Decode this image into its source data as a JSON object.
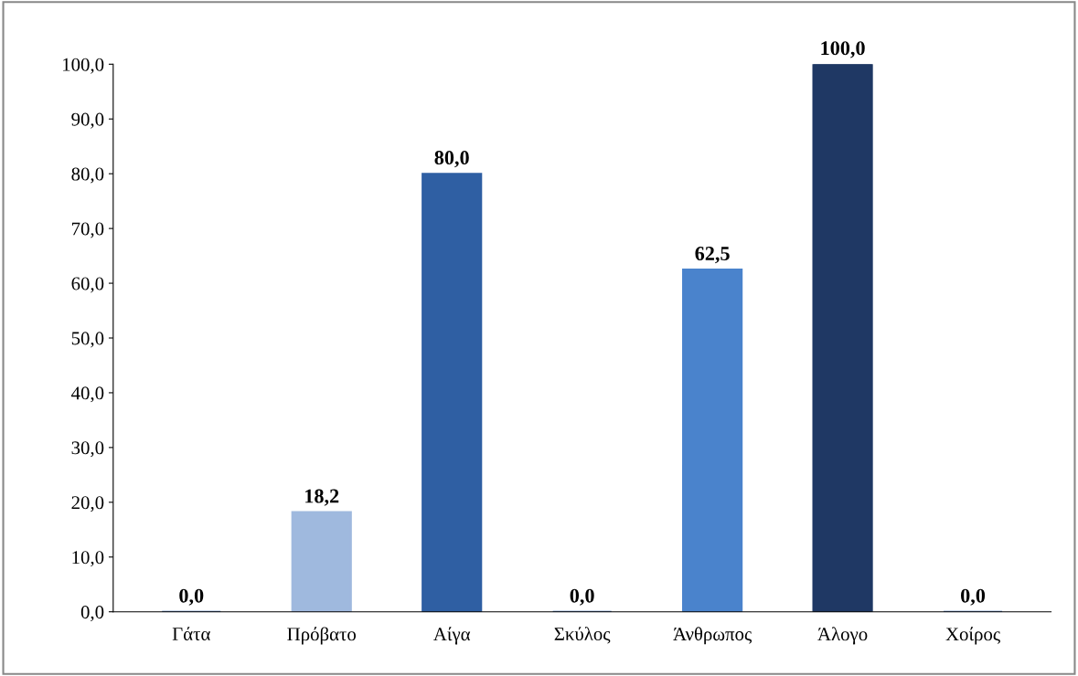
{
  "chart_data": {
    "type": "bar",
    "categories": [
      "Γάτα",
      "Πρόβατο",
      "Αίγα",
      "Σκύλος",
      "Άνθρωπος",
      "Άλογο",
      "Χοίρος"
    ],
    "values": [
      0,
      18.2,
      80,
      0,
      62.5,
      100,
      0
    ],
    "colors": [
      "#2f5fa3",
      "#9fb9de",
      "#2f5fa3",
      "#2f5fa3",
      "#4a83cc",
      "#1f3864",
      "#2f5fa3"
    ],
    "value_labels": [
      "0,0",
      "18,2",
      "80,0",
      "0,0",
      "62,5",
      "100,0",
      "0,0"
    ],
    "ylim": [
      0,
      100
    ],
    "yticks": [
      {
        "value": 0,
        "label": "0,0"
      },
      {
        "value": 10,
        "label": "10,0"
      },
      {
        "value": 20,
        "label": "20,0"
      },
      {
        "value": 30,
        "label": "30,0"
      },
      {
        "value": 40,
        "label": "40,0"
      },
      {
        "value": 50,
        "label": "50,0"
      },
      {
        "value": 60,
        "label": "60,0"
      },
      {
        "value": 70,
        "label": "70,0"
      },
      {
        "value": 80,
        "label": "80,0"
      },
      {
        "value": 90,
        "label": "90,0"
      },
      {
        "value": 100,
        "label": "100,0"
      }
    ],
    "grid": false,
    "legend": false
  }
}
